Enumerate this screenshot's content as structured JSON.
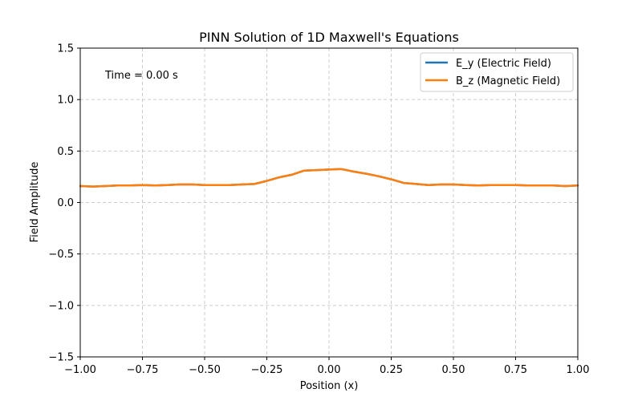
{
  "chart_data": {
    "type": "line",
    "title": "PINN Solution of 1D Maxwell's Equations",
    "xlabel": "Position (x)",
    "ylabel": "Field Amplitude",
    "xlim": [
      -1.0,
      1.0
    ],
    "ylim": [
      -1.5,
      1.5
    ],
    "xticks": [
      -1.0,
      -0.75,
      -0.5,
      -0.25,
      0.0,
      0.25,
      0.5,
      0.75,
      1.0
    ],
    "xtick_labels": [
      "−1.00",
      "−0.75",
      "−0.50",
      "−0.25",
      "0.00",
      "0.25",
      "0.50",
      "0.75",
      "1.00"
    ],
    "yticks": [
      -1.5,
      -1.0,
      -0.5,
      0.0,
      0.5,
      1.0,
      1.5
    ],
    "ytick_labels": [
      "−1.5",
      "−1.0",
      "−0.5",
      "0.0",
      "0.5",
      "1.0",
      "1.5"
    ],
    "grid": true,
    "legend_position": "top-right",
    "annotation": "Time = 0.00 s",
    "x": [
      -1.0,
      -0.95,
      -0.9,
      -0.85,
      -0.8,
      -0.75,
      -0.7,
      -0.65,
      -0.6,
      -0.55,
      -0.5,
      -0.45,
      -0.4,
      -0.35,
      -0.3,
      -0.25,
      -0.2,
      -0.15,
      -0.1,
      -0.05,
      0.0,
      0.05,
      0.1,
      0.15,
      0.2,
      0.25,
      0.3,
      0.35,
      0.4,
      0.45,
      0.5,
      0.55,
      0.6,
      0.65,
      0.7,
      0.75,
      0.8,
      0.85,
      0.9,
      0.95,
      1.0
    ],
    "series": [
      {
        "name": "E_y (Electric Field)",
        "color": "#1f77b4",
        "values": [
          0.16,
          0.155,
          0.16,
          0.165,
          0.165,
          0.17,
          0.165,
          0.17,
          0.175,
          0.175,
          0.17,
          0.17,
          0.17,
          0.175,
          0.18,
          0.21,
          0.245,
          0.27,
          0.31,
          0.315,
          0.32,
          0.325,
          0.3,
          0.28,
          0.255,
          0.225,
          0.19,
          0.18,
          0.17,
          0.175,
          0.175,
          0.17,
          0.165,
          0.17,
          0.17,
          0.17,
          0.165,
          0.165,
          0.165,
          0.16,
          0.165
        ]
      },
      {
        "name": "B_z (Magnetic Field)",
        "color": "#ff7f0e",
        "values": [
          0.16,
          0.155,
          0.16,
          0.165,
          0.165,
          0.17,
          0.165,
          0.17,
          0.175,
          0.175,
          0.17,
          0.17,
          0.17,
          0.175,
          0.18,
          0.21,
          0.245,
          0.27,
          0.31,
          0.315,
          0.32,
          0.325,
          0.3,
          0.28,
          0.255,
          0.225,
          0.19,
          0.18,
          0.17,
          0.175,
          0.175,
          0.17,
          0.165,
          0.17,
          0.17,
          0.17,
          0.165,
          0.165,
          0.165,
          0.16,
          0.165
        ]
      }
    ]
  }
}
